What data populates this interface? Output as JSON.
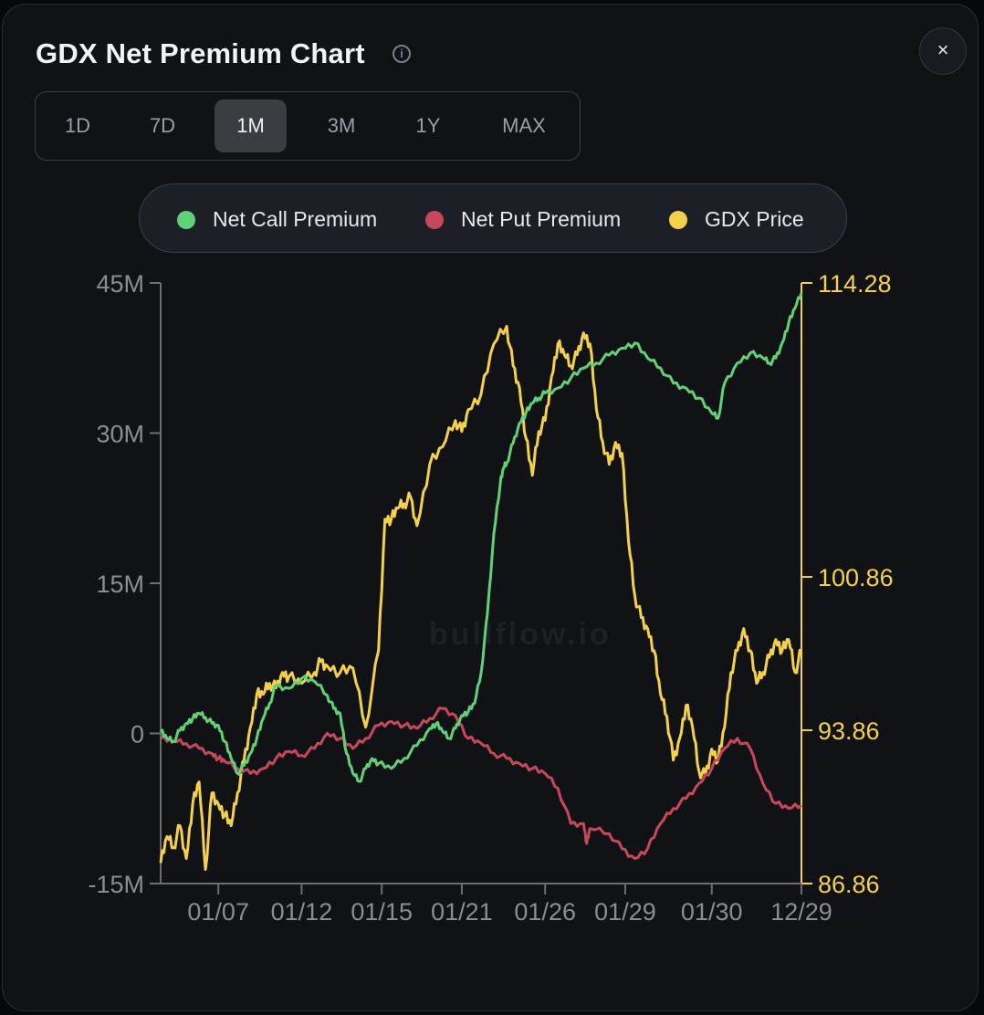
{
  "header": {
    "title": "GDX Net Premium Chart",
    "info_icon": "info-icon",
    "close_label": "×"
  },
  "ranges": {
    "options": [
      "1D",
      "7D",
      "1M",
      "3M",
      "1Y",
      "MAX"
    ],
    "selected": "1M"
  },
  "legend": {
    "items": [
      {
        "label": "Net Call Premium",
        "color": "#5fd176"
      },
      {
        "label": "Net Put Premium",
        "color": "#c8475a"
      },
      {
        "label": "GDX Price",
        "color": "#f5d14a"
      }
    ]
  },
  "watermark": "bullflow.io",
  "colors": {
    "call": "#5fd176",
    "put": "#c8475a",
    "price": "#f5d14a",
    "axis_left": "#8a8d93",
    "axis_right": "#f5d14a"
  },
  "chart_data": {
    "type": "line",
    "x_labels": [
      "01/07",
      "01/12",
      "01/15",
      "01/21",
      "01/26",
      "01/29",
      "01/30",
      "12/29"
    ],
    "x_label_pos": [
      0.09,
      0.22,
      0.345,
      0.47,
      0.6,
      0.725,
      0.86,
      1.0
    ],
    "y_left": {
      "ticks": [
        "45M",
        "30M",
        "15M",
        "0",
        "-15M"
      ],
      "tick_values": [
        45,
        30,
        15,
        0,
        -15
      ],
      "range": [
        -15,
        45
      ],
      "unit": "M"
    },
    "y_right": {
      "ticks": [
        "114.28",
        "100.86",
        "93.86",
        "86.86"
      ],
      "tick_values": [
        114.28,
        100.86,
        93.86,
        86.86
      ],
      "range": [
        86.86,
        114.28
      ]
    },
    "series": [
      {
        "name": "Net Call Premium",
        "axis": "left",
        "x": [
          0,
          0.01,
          0.02,
          0.03,
          0.04,
          0.05,
          0.06,
          0.07,
          0.08,
          0.09,
          0.1,
          0.11,
          0.12,
          0.13,
          0.14,
          0.15,
          0.16,
          0.17,
          0.18,
          0.2,
          0.22,
          0.24,
          0.26,
          0.27,
          0.28,
          0.29,
          0.3,
          0.31,
          0.32,
          0.33,
          0.34,
          0.36,
          0.38,
          0.4,
          0.42,
          0.43,
          0.44,
          0.45,
          0.46,
          0.47,
          0.48,
          0.49,
          0.5,
          0.51,
          0.52,
          0.53,
          0.535,
          0.54,
          0.55,
          0.56,
          0.57,
          0.58,
          0.59,
          0.6,
          0.62,
          0.64,
          0.66,
          0.68,
          0.7,
          0.72,
          0.74,
          0.76,
          0.78,
          0.8,
          0.82,
          0.84,
          0.86,
          0.87,
          0.88,
          0.9,
          0.92,
          0.94,
          0.95,
          0.96,
          0.97,
          0.98,
          0.99,
          1.0
        ],
        "y": [
          0.2,
          -0.5,
          -0.8,
          0.3,
          1.0,
          1.5,
          2.0,
          1.6,
          1.0,
          0.8,
          -0.8,
          -2.5,
          -4.0,
          -3.2,
          -2.0,
          -0.5,
          1.5,
          3.0,
          4.8,
          4.5,
          5.5,
          5.2,
          3.8,
          2.5,
          2.0,
          -2.0,
          -4.0,
          -4.8,
          -3.5,
          -2.5,
          -3.0,
          -3.5,
          -2.5,
          -1.2,
          0.5,
          1.0,
          0.2,
          -0.5,
          0.5,
          1.8,
          2.2,
          3.0,
          6.0,
          12.0,
          20.0,
          25.0,
          26.5,
          27.0,
          29.0,
          31.0,
          32.0,
          33.0,
          33.5,
          34.0,
          34.5,
          35.5,
          36.5,
          37.0,
          37.8,
          38.5,
          39.0,
          37.5,
          36.5,
          35.0,
          34.5,
          33.5,
          32.0,
          31.5,
          35.0,
          37.0,
          38.0,
          37.5,
          37.0,
          37.5,
          39.0,
          41.0,
          42.5,
          44.0
        ]
      },
      {
        "name": "Net Put Premium",
        "axis": "left",
        "x": [
          0,
          0.02,
          0.04,
          0.06,
          0.08,
          0.09,
          0.1,
          0.12,
          0.14,
          0.16,
          0.18,
          0.2,
          0.22,
          0.24,
          0.26,
          0.28,
          0.3,
          0.32,
          0.34,
          0.36,
          0.38,
          0.4,
          0.42,
          0.44,
          0.46,
          0.48,
          0.5,
          0.52,
          0.54,
          0.56,
          0.58,
          0.6,
          0.62,
          0.64,
          0.66,
          0.665,
          0.67,
          0.7,
          0.72,
          0.74,
          0.76,
          0.78,
          0.8,
          0.82,
          0.84,
          0.86,
          0.88,
          0.9,
          0.92,
          0.94,
          0.96,
          0.98,
          1.0
        ],
        "y": [
          -0.5,
          -0.8,
          -1.0,
          -1.5,
          -2.0,
          -2.5,
          -2.8,
          -3.5,
          -4.0,
          -3.5,
          -2.5,
          -1.8,
          -2.2,
          -1.5,
          0.0,
          -0.5,
          -1.5,
          -0.5,
          0.8,
          1.2,
          0.8,
          0.5,
          1.5,
          2.5,
          1.8,
          -0.5,
          -1.0,
          -2.0,
          -2.5,
          -3.0,
          -3.5,
          -4.0,
          -5.5,
          -9.0,
          -9.0,
          -11.0,
          -9.5,
          -10.0,
          -11.5,
          -12.5,
          -11.5,
          -9.0,
          -7.5,
          -6.5,
          -5.0,
          -3.5,
          -1.5,
          -0.5,
          -1.5,
          -5.0,
          -7.0,
          -7.5,
          -7.2
        ]
      },
      {
        "name": "GDX Price",
        "axis": "right",
        "x": [
          0,
          0.01,
          0.02,
          0.03,
          0.04,
          0.05,
          0.06,
          0.07,
          0.08,
          0.09,
          0.1,
          0.11,
          0.12,
          0.13,
          0.14,
          0.15,
          0.16,
          0.17,
          0.18,
          0.19,
          0.2,
          0.22,
          0.24,
          0.25,
          0.26,
          0.28,
          0.3,
          0.32,
          0.34,
          0.35,
          0.36,
          0.37,
          0.38,
          0.39,
          0.4,
          0.42,
          0.44,
          0.46,
          0.47,
          0.48,
          0.5,
          0.52,
          0.54,
          0.55,
          0.56,
          0.57,
          0.58,
          0.59,
          0.6,
          0.61,
          0.62,
          0.63,
          0.64,
          0.65,
          0.66,
          0.67,
          0.68,
          0.69,
          0.7,
          0.71,
          0.72,
          0.73,
          0.74,
          0.75,
          0.76,
          0.77,
          0.78,
          0.79,
          0.8,
          0.81,
          0.82,
          0.83,
          0.84,
          0.85,
          0.86,
          0.87,
          0.88,
          0.89,
          0.9,
          0.91,
          0.92,
          0.93,
          0.94,
          0.95,
          0.96,
          0.97,
          0.98,
          0.99,
          1.0
        ],
        "y": [
          87.8,
          89.0,
          88.5,
          89.5,
          88.0,
          90.5,
          91.5,
          87.5,
          91.0,
          90.5,
          90.0,
          89.5,
          91.0,
          92.5,
          94.0,
          95.5,
          95.5,
          96.0,
          95.8,
          96.5,
          96.3,
          96.0,
          96.5,
          97.0,
          96.8,
          96.5,
          96.7,
          94.0,
          97.5,
          103.5,
          103.5,
          104.0,
          104.2,
          104.5,
          103.2,
          106.0,
          106.8,
          108.0,
          107.5,
          108.5,
          109.2,
          111.5,
          112.3,
          110.5,
          109.5,
          107.2,
          105.5,
          107.5,
          108.0,
          110.0,
          111.5,
          111.0,
          110.5,
          111.0,
          112.0,
          111.5,
          108.5,
          107.0,
          106.0,
          107.0,
          106.5,
          102.5,
          100.0,
          99.0,
          98.5,
          97.5,
          95.5,
          94.5,
          92.5,
          93.5,
          95.0,
          94.0,
          92.0,
          91.8,
          93.0,
          92.5,
          94.0,
          96.5,
          97.5,
          98.5,
          97.5,
          96.0,
          96.5,
          97.2,
          98.0,
          97.5,
          98.0,
          96.5,
          97.5
        ]
      }
    ]
  }
}
